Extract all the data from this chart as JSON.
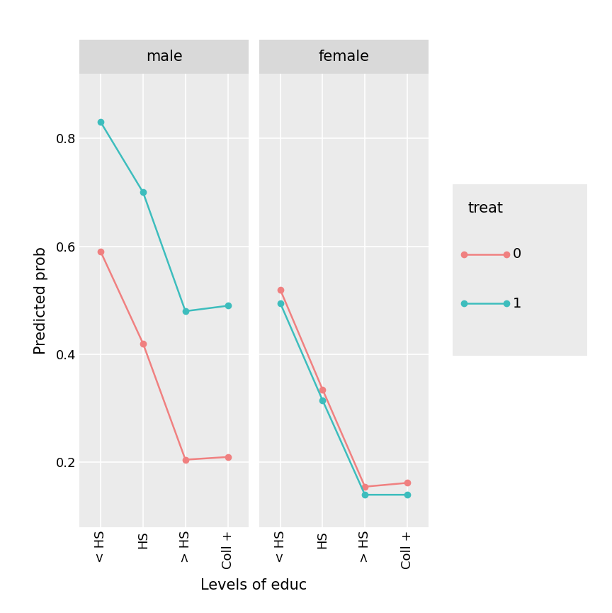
{
  "panels": [
    "male",
    "female"
  ],
  "x_labels": [
    "< HS",
    "HS",
    "> HS",
    "Coll +"
  ],
  "x_label": "Levels of educ",
  "y_label": "Predicted prob",
  "legend_title": "treat",
  "legend_labels": [
    "0",
    "1"
  ],
  "color_treat0": "#F08080",
  "color_treat1": "#3DBDBD",
  "male_treat0": [
    0.59,
    0.42,
    0.205,
    0.21
  ],
  "male_treat1": [
    0.83,
    0.7,
    0.48,
    0.49
  ],
  "female_treat0": [
    0.52,
    0.335,
    0.155,
    0.162
  ],
  "female_treat1": [
    0.495,
    0.315,
    0.14,
    0.14
  ],
  "ylim": [
    0.08,
    0.92
  ],
  "yticks": [
    0.2,
    0.4,
    0.6,
    0.8
  ],
  "panel_bg": "#EBEBEB",
  "fig_bg": "#FFFFFF",
  "strip_bg": "#D9D9D9",
  "grid_color": "#FFFFFF",
  "marker_size": 6,
  "line_width": 1.8,
  "axis_label_fontsize": 15,
  "tick_fontsize": 13,
  "legend_fontsize": 14,
  "strip_fontsize": 15
}
